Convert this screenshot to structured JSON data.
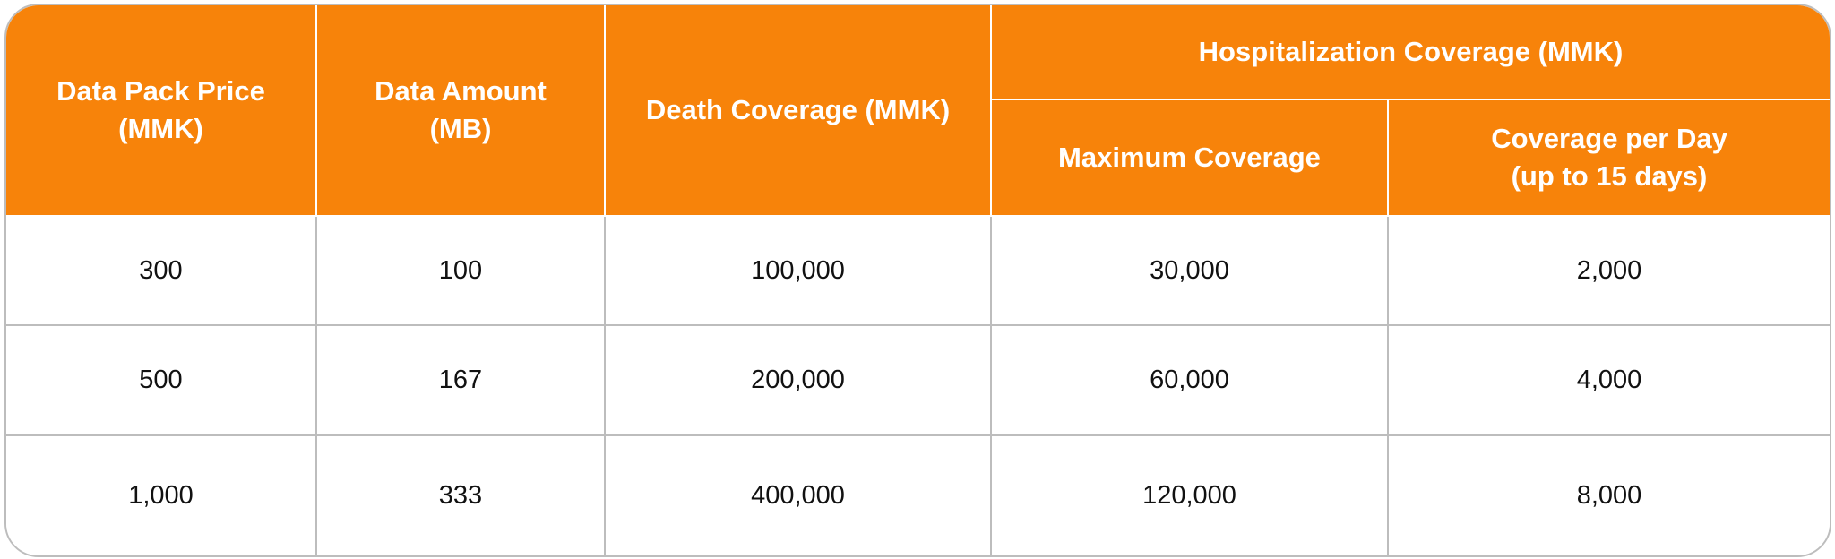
{
  "headers": {
    "data_pack_price": [
      "Data Pack Price",
      "(MMK)"
    ],
    "data_amount": [
      "Data Amount",
      "(MB)"
    ],
    "death_coverage": "Death Coverage (MMK)",
    "hospitalization_coverage": "Hospitalization Coverage (MMK)",
    "maximum_coverage": "Maximum Coverage",
    "coverage_per_day": [
      "Coverage per Day",
      "(up to 15 days)"
    ]
  },
  "rows": [
    [
      "300",
      "100",
      "100,000",
      "30,000",
      "2,000"
    ],
    [
      "500",
      "167",
      "200,000",
      "60,000",
      "4,000"
    ],
    [
      "1,000",
      "333",
      "400,000",
      "120,000",
      "8,000"
    ]
  ],
  "colors": {
    "header_background": "#f7830a",
    "header_text": "#ffffff",
    "border": "#bdbdbd"
  }
}
